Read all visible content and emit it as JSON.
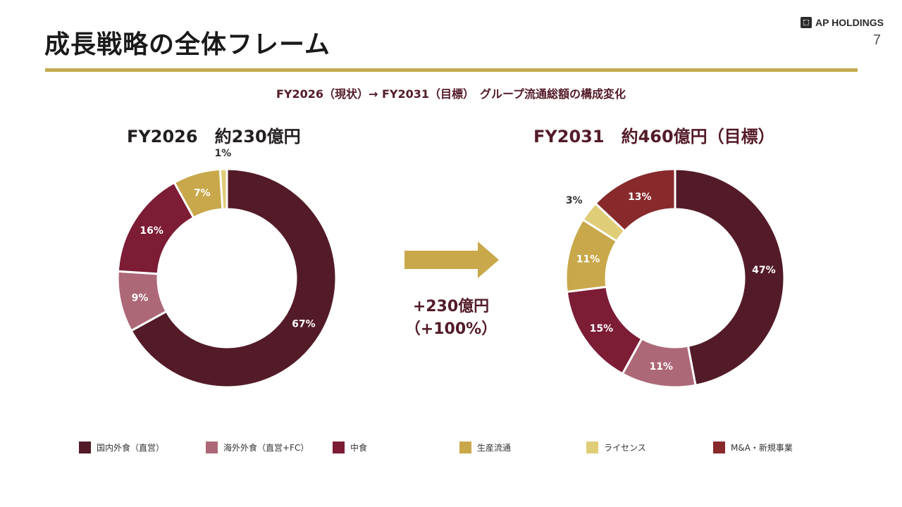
{
  "header": {
    "title": "成長戦略の全体フレーム",
    "logo_text": "AP HOLDINGS",
    "page_number": "7"
  },
  "subtitle": "FY2026（現状）→ FY2031（目標）　グループ流通総額の構成変化",
  "growth": {
    "amount": "+230億円",
    "percent": "（+100%）"
  },
  "colors": {
    "domestic": "#531b28",
    "overseas": "#ad6877",
    "nakashoku": "#7c1c35",
    "production": "#c8a84a",
    "license": "#dfcd78",
    "ma": "#88292b",
    "rule": "#c3aa4f"
  },
  "chart_data": [
    {
      "type": "pie",
      "title": "FY2026　約230億円",
      "categories": [
        "国内外食（直営）",
        "海外外食（直営+FC）",
        "中食",
        "生産流通",
        "ライセンス"
      ],
      "values": [
        67,
        9,
        16,
        7,
        1
      ],
      "labels": [
        "67%",
        "9%",
        "16%",
        "7%",
        "1%"
      ],
      "unit": "%"
    },
    {
      "type": "pie",
      "title": "FY2031　約460億円（目標）",
      "categories": [
        "国内外食（直営）",
        "海外外食（直営+FC）",
        "中食",
        "生産流通",
        "ライセンス",
        "M&A・新規事業"
      ],
      "values": [
        47,
        11,
        15,
        11,
        3,
        13
      ],
      "labels": [
        "47%",
        "11%",
        "15%",
        "11%",
        "3%",
        "13%"
      ],
      "unit": "%"
    }
  ],
  "legend": [
    {
      "label": "国内外食（直営）",
      "color": "#531b28"
    },
    {
      "label": "海外外食（直営+FC）",
      "color": "#ad6877"
    },
    {
      "label": "中食",
      "color": "#7c1c35"
    },
    {
      "label": "生産流通",
      "color": "#c8a84a"
    },
    {
      "label": "ライセンス",
      "color": "#dfcd78"
    },
    {
      "label": "M&A・新規事業",
      "color": "#88292b"
    }
  ]
}
